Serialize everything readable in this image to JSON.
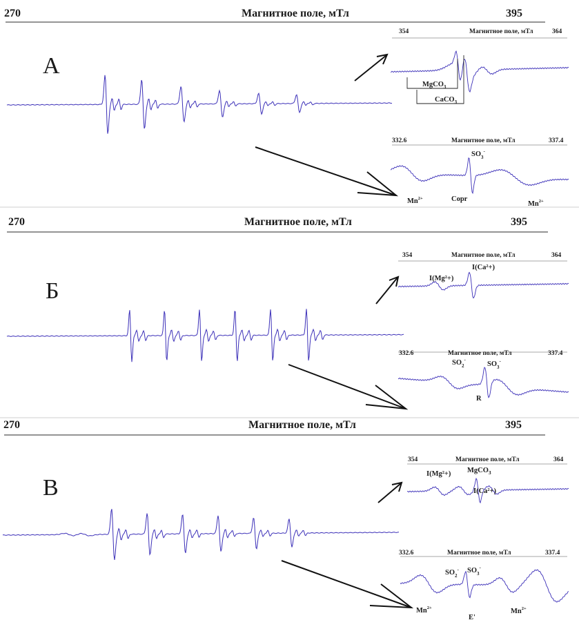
{
  "colors": {
    "spectrum": "#3b2fb8",
    "text": "#1a1a1a",
    "arrow": "#111111",
    "axis": "#8a8a8a"
  },
  "panels": [
    {
      "id": "A",
      "letter": "А",
      "header": {
        "min": "270",
        "title": "Магнитное поле, мТл",
        "max": "395"
      },
      "inset_top": {
        "min": "354",
        "title": "Магнитное поле, мТл",
        "max": "364",
        "labels": [
          {
            "text": "MgCO",
            "sub": "3",
            "sup": ""
          },
          {
            "text": "CaCO",
            "sub": "3",
            "sup": ""
          }
        ]
      },
      "inset_bottom": {
        "min": "332.6",
        "title": "Магнитное поле, мТл",
        "max": "337.4",
        "labels": [
          {
            "text": "SO",
            "sub": "3",
            "sup": "-"
          },
          {
            "text": "Mn",
            "sub": "",
            "sup": "2+"
          },
          {
            "text": "Copr",
            "sub": "",
            "sup": ""
          },
          {
            "text": "Mn",
            "sub": "",
            "sup": "2+"
          }
        ]
      }
    },
    {
      "id": "B",
      "letter": "Б",
      "header": {
        "min": "270",
        "title": "Магнитное поле, мТл",
        "max": "395"
      },
      "inset_top": {
        "min": "354",
        "title": "Магнитное поле, мТл",
        "max": "364",
        "labels": [
          {
            "text": "I(Mg²+)",
            "sub": "",
            "sup": ""
          },
          {
            "text": "I(Ca²+)",
            "sub": "",
            "sup": ""
          }
        ]
      },
      "inset_bottom": {
        "min": "332.6",
        "title": "Магнитное поле, мТл",
        "max": "337.4",
        "labels": [
          {
            "text": "SO",
            "sub": "2",
            "sup": "-"
          },
          {
            "text": "SO",
            "sub": "3",
            "sup": "-"
          },
          {
            "text": "R",
            "sub": "",
            "sup": ""
          }
        ]
      }
    },
    {
      "id": "C",
      "letter": "В",
      "header": {
        "min": "270",
        "title": "Магнитное поле, мТл",
        "max": "395"
      },
      "inset_top": {
        "min": "354",
        "title": "Магнитное поле, мТл",
        "max": "364",
        "labels": [
          {
            "text": "I(Mg²+)",
            "sub": "",
            "sup": ""
          },
          {
            "text": "MgCO",
            "sub": "3",
            "sup": ""
          },
          {
            "text": "I(Ca²+)",
            "sub": "",
            "sup": ""
          }
        ]
      },
      "inset_bottom": {
        "min": "332.6",
        "title": "Магнитное поле, мТл",
        "max": "337.4",
        "labels": [
          {
            "text": "SO",
            "sub": "2",
            "sup": "-"
          },
          {
            "text": "SO",
            "sub": "3",
            "sup": "-"
          },
          {
            "text": "Mn",
            "sub": "",
            "sup": "2+"
          },
          {
            "text": "E'",
            "sub": "",
            "sup": ""
          },
          {
            "text": "Mn",
            "sub": "",
            "sup": "2+"
          }
        ]
      }
    }
  ],
  "chart_data": [
    {
      "type": "line",
      "panel": "А",
      "title": "Магнитное поле, мТл",
      "xlim": [
        270,
        395
      ],
      "series": [
        {
          "kind": "main",
          "pattern": "Mn2+ sextet",
          "offset": 0,
          "lines": [
            {
              "x": 302.3,
              "amp": 1.0,
              "w": 0.45
            },
            {
              "x": 314.2,
              "amp": 0.85,
              "w": 0.45
            },
            {
              "x": 327.0,
              "amp": 0.6,
              "w": 0.5
            },
            {
              "x": 339.5,
              "amp": 0.45,
              "w": 0.5
            },
            {
              "x": 352.2,
              "amp": 0.35,
              "w": 0.5
            },
            {
              "x": 364.5,
              "amp": 0.3,
              "w": 0.5
            }
          ]
        }
      ]
    },
    {
      "type": "line",
      "panel": "Б",
      "title": "Магнитное поле, мТл",
      "xlim": [
        270,
        395
      ],
      "series": [
        {
          "kind": "main",
          "pattern": "Mn2+ sextet",
          "offset": 0,
          "lines": [
            {
              "x": 309.0,
              "amp": 1.0,
              "w": 0.35
            },
            {
              "x": 320.0,
              "amp": 1.0,
              "w": 0.35
            },
            {
              "x": 331.0,
              "amp": 1.0,
              "w": 0.35
            },
            {
              "x": 342.2,
              "amp": 1.0,
              "w": 0.35
            },
            {
              "x": 353.4,
              "amp": 1.0,
              "w": 0.35
            },
            {
              "x": 364.7,
              "amp": 1.0,
              "w": 0.35
            }
          ]
        }
      ]
    },
    {
      "type": "line",
      "panel": "В",
      "title": "Магнитное поле, мТл",
      "xlim": [
        270,
        395
      ],
      "series": [
        {
          "kind": "main",
          "pattern": "Mn2+ sextet",
          "offset": 0,
          "lines": [
            {
              "x": 304.8,
              "amp": 1.0,
              "w": 0.45
            },
            {
              "x": 316.0,
              "amp": 0.8,
              "w": 0.45
            },
            {
              "x": 327.2,
              "amp": 0.75,
              "w": 0.45
            },
            {
              "x": 338.4,
              "amp": 0.7,
              "w": 0.45
            },
            {
              "x": 349.6,
              "amp": 0.6,
              "w": 0.45
            },
            {
              "x": 360.8,
              "amp": 0.55,
              "w": 0.45
            }
          ]
        }
      ]
    }
  ]
}
